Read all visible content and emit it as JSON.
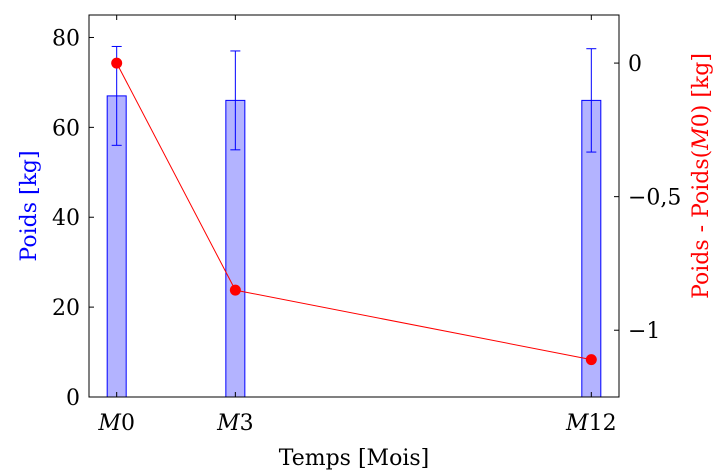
{
  "chart_data": {
    "type": "bar",
    "categories": [
      "M0",
      "M3",
      "M12"
    ],
    "x": [
      0,
      3,
      12
    ],
    "xlabel": "Temps [Mois]",
    "series": [
      {
        "axis": "left",
        "type": "bar",
        "values": [
          67,
          66,
          66
        ],
        "error_low": [
          56,
          55,
          54.5
        ],
        "error_high": [
          78,
          77,
          77.5
        ],
        "color": "#0000ff",
        "fill": "#b3b3ff"
      },
      {
        "axis": "right",
        "type": "line",
        "values": [
          0,
          -0.85,
          -1.11
        ],
        "color": "#ff0000"
      }
    ],
    "y_left": {
      "label": "Poids [kg]",
      "ylim": [
        0,
        85
      ],
      "ticks": [
        0,
        20,
        40,
        60,
        80
      ],
      "tick_labels": [
        "0",
        "20",
        "40",
        "60",
        "80"
      ],
      "color": "#0000ff"
    },
    "y_right": {
      "label_parts": [
        "Poids - Poids(",
        "M",
        "0) [kg]"
      ],
      "ylim": [
        -1.25,
        0.18
      ],
      "ticks": [
        0,
        -0.5,
        -1
      ],
      "tick_labels": [
        "0",
        "−0,5",
        "−1"
      ],
      "color": "#ff0000"
    },
    "x_tick_labels": [
      {
        "letter": "M",
        "number": "0"
      },
      {
        "letter": "M",
        "number": "3"
      },
      {
        "letter": "M",
        "number": "12"
      }
    ],
    "grid": false
  }
}
